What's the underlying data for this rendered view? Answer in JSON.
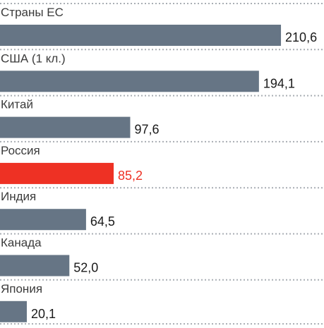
{
  "chart_data": {
    "type": "bar",
    "orientation": "horizontal",
    "categories": [
      "Страны ЕС",
      "США (1 кл.)",
      "Китай",
      "Россия",
      "Индия",
      "Канада",
      "Япония"
    ],
    "values": [
      210.6,
      194.1,
      97.6,
      85.2,
      64.5,
      52.0,
      20.1
    ],
    "value_labels": [
      "210,6",
      "194,1",
      "97,6",
      "85,2",
      "64,5",
      "52,0",
      "20,1"
    ],
    "highlight_category": "Россия",
    "colors": {
      "bar": "#667585",
      "highlight_bar": "#ee3124",
      "label_text": "#3b3b3b",
      "value_text": "#1a1a1a",
      "highlight_text": "#ee3124",
      "separator": "#a9aeb4"
    },
    "grid": false,
    "legend": "none",
    "title": "",
    "xlabel": "",
    "ylabel": ""
  }
}
